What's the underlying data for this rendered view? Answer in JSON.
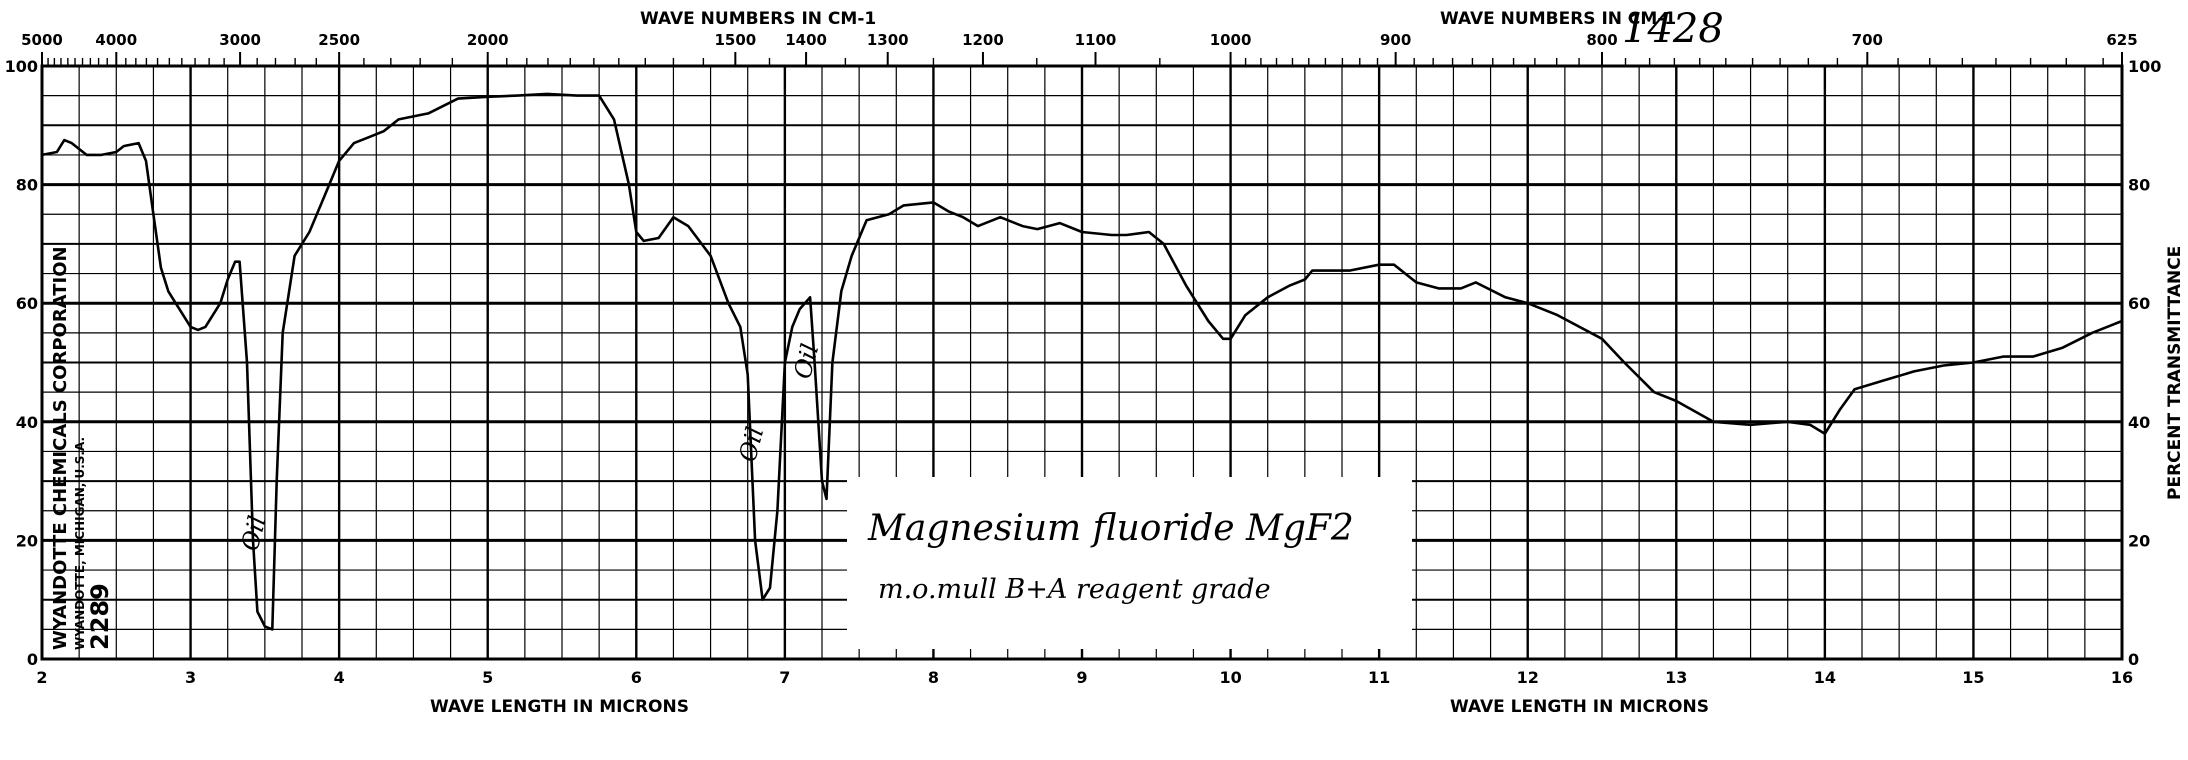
{
  "chart_data": {
    "type": "line",
    "title": "Magnesium fluoride MgF2",
    "subtitle": "m.o.mull  B+A reagent grade",
    "spectrum_number": "1428",
    "xlabel": "WAVE LENGTH IN MICRONS",
    "x2label": "WAVE NUMBERS IN CM-1",
    "ylabel": "PERCENT TRANSMITTANCE",
    "xlim": [
      2,
      16
    ],
    "ylim": [
      0,
      100
    ],
    "grid": true,
    "x_ticks": [
      "2",
      "3",
      "4",
      "5",
      "6",
      "7",
      "8",
      "9",
      "10",
      "11",
      "12",
      "13",
      "14",
      "15",
      "16"
    ],
    "y_ticks": [
      "0",
      "20",
      "40",
      "60",
      "80",
      "100"
    ],
    "wavenumber_ticks": [
      "5000",
      "4000",
      "3000",
      "2500",
      "2000",
      "1500",
      "1400",
      "1300",
      "1200",
      "1100",
      "1000",
      "900",
      "800",
      "700",
      "625"
    ],
    "publisher": {
      "name": "WYANDOTTE CHEMICALS CORPORATION",
      "location": "WYANDOTTE, MICHIGAN, U.S.A.",
      "chart_number": "2289"
    },
    "annotations": [
      {
        "text": "Oil",
        "x": 3.5,
        "y": 18
      },
      {
        "text": "Oil",
        "x": 6.85,
        "y": 33
      },
      {
        "text": "Oil",
        "x": 7.22,
        "y": 47
      }
    ],
    "series": [
      {
        "name": "transmittance",
        "x": [
          2.0,
          2.1,
          2.15,
          2.2,
          2.3,
          2.4,
          2.5,
          2.55,
          2.65,
          2.7,
          2.75,
          2.8,
          2.85,
          2.9,
          3.0,
          3.05,
          3.1,
          3.2,
          3.25,
          3.3,
          3.33,
          3.38,
          3.42,
          3.45,
          3.5,
          3.55,
          3.58,
          3.62,
          3.7,
          3.8,
          3.9,
          4.0,
          4.1,
          4.2,
          4.3,
          4.4,
          4.6,
          4.8,
          5.0,
          5.2,
          5.4,
          5.6,
          5.75,
          5.85,
          5.95,
          6.0,
          6.05,
          6.15,
          6.25,
          6.35,
          6.5,
          6.62,
          6.7,
          6.75,
          6.8,
          6.85,
          6.9,
          6.95,
          7.0,
          7.05,
          7.1,
          7.17,
          7.2,
          7.25,
          7.28,
          7.32,
          7.38,
          7.45,
          7.55,
          7.7,
          7.8,
          8.0,
          8.1,
          8.2,
          8.3,
          8.45,
          8.6,
          8.7,
          8.85,
          9.0,
          9.2,
          9.3,
          9.45,
          9.55,
          9.7,
          9.85,
          9.95,
          10.0,
          10.1,
          10.25,
          10.4,
          10.5,
          10.55,
          10.8,
          11.0,
          11.1,
          11.25,
          11.4,
          11.55,
          11.65,
          11.85,
          12.0,
          12.2,
          12.5,
          12.65,
          12.85,
          13.0,
          13.25,
          13.5,
          13.75,
          13.9,
          14.0,
          14.1,
          14.2,
          14.4,
          14.6,
          14.8,
          15.0,
          15.2,
          15.4,
          15.6,
          15.8,
          15.9,
          16.0
        ],
        "y": [
          85,
          85.5,
          87.5,
          87,
          85,
          85,
          85.5,
          86.5,
          87,
          84,
          75,
          66,
          62,
          60,
          56,
          55.5,
          56,
          60,
          64,
          67,
          67,
          50,
          20,
          8,
          5.5,
          5,
          30,
          55,
          68,
          72,
          78,
          84,
          87,
          88,
          89,
          91,
          92,
          94.5,
          94.8,
          95,
          95.3,
          95,
          95,
          91,
          80,
          72,
          70.5,
          71,
          74.5,
          73,
          68,
          60,
          56,
          48,
          20,
          10,
          12,
          25,
          50,
          56,
          59,
          61,
          50,
          30,
          27,
          50,
          62,
          68,
          74,
          75,
          76.5,
          77,
          75.5,
          74.5,
          73,
          74.5,
          73,
          72.5,
          73.5,
          72,
          71.5,
          71.5,
          72,
          70,
          63,
          57,
          54,
          54,
          58,
          61,
          63,
          64,
          65.5,
          65.5,
          66.5,
          66.5,
          63.5,
          62.5,
          62.5,
          63.5,
          61,
          60,
          58,
          54,
          50,
          45,
          43.5,
          40,
          39.5,
          40,
          39.5,
          38,
          42,
          45.5,
          47,
          48.5,
          49.5,
          50,
          51,
          51,
          52.5,
          55,
          56,
          57
        ]
      }
    ]
  }
}
